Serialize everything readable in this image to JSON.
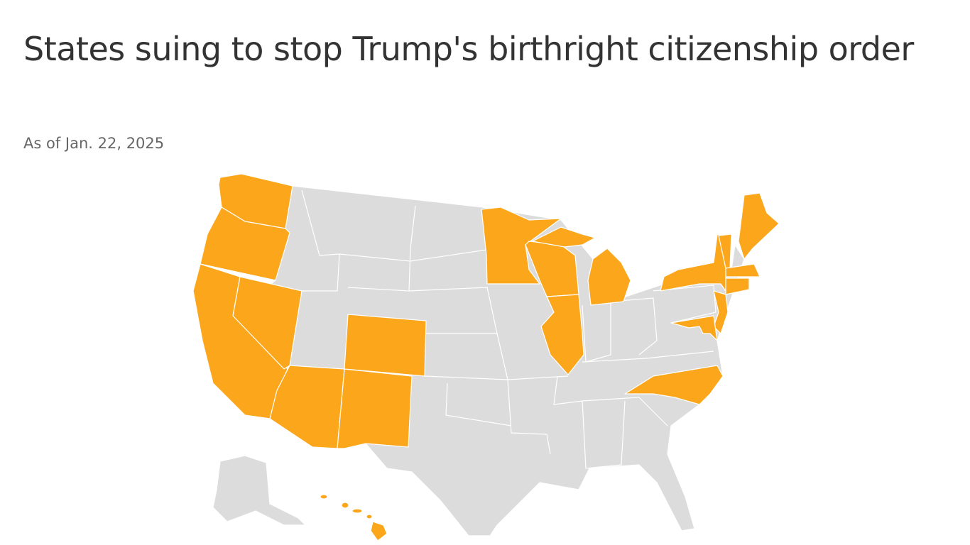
{
  "header": {
    "title": "States suing to stop Trump's birthright citizenship order",
    "subtitle": "As of Jan. 22, 2025"
  }
}
